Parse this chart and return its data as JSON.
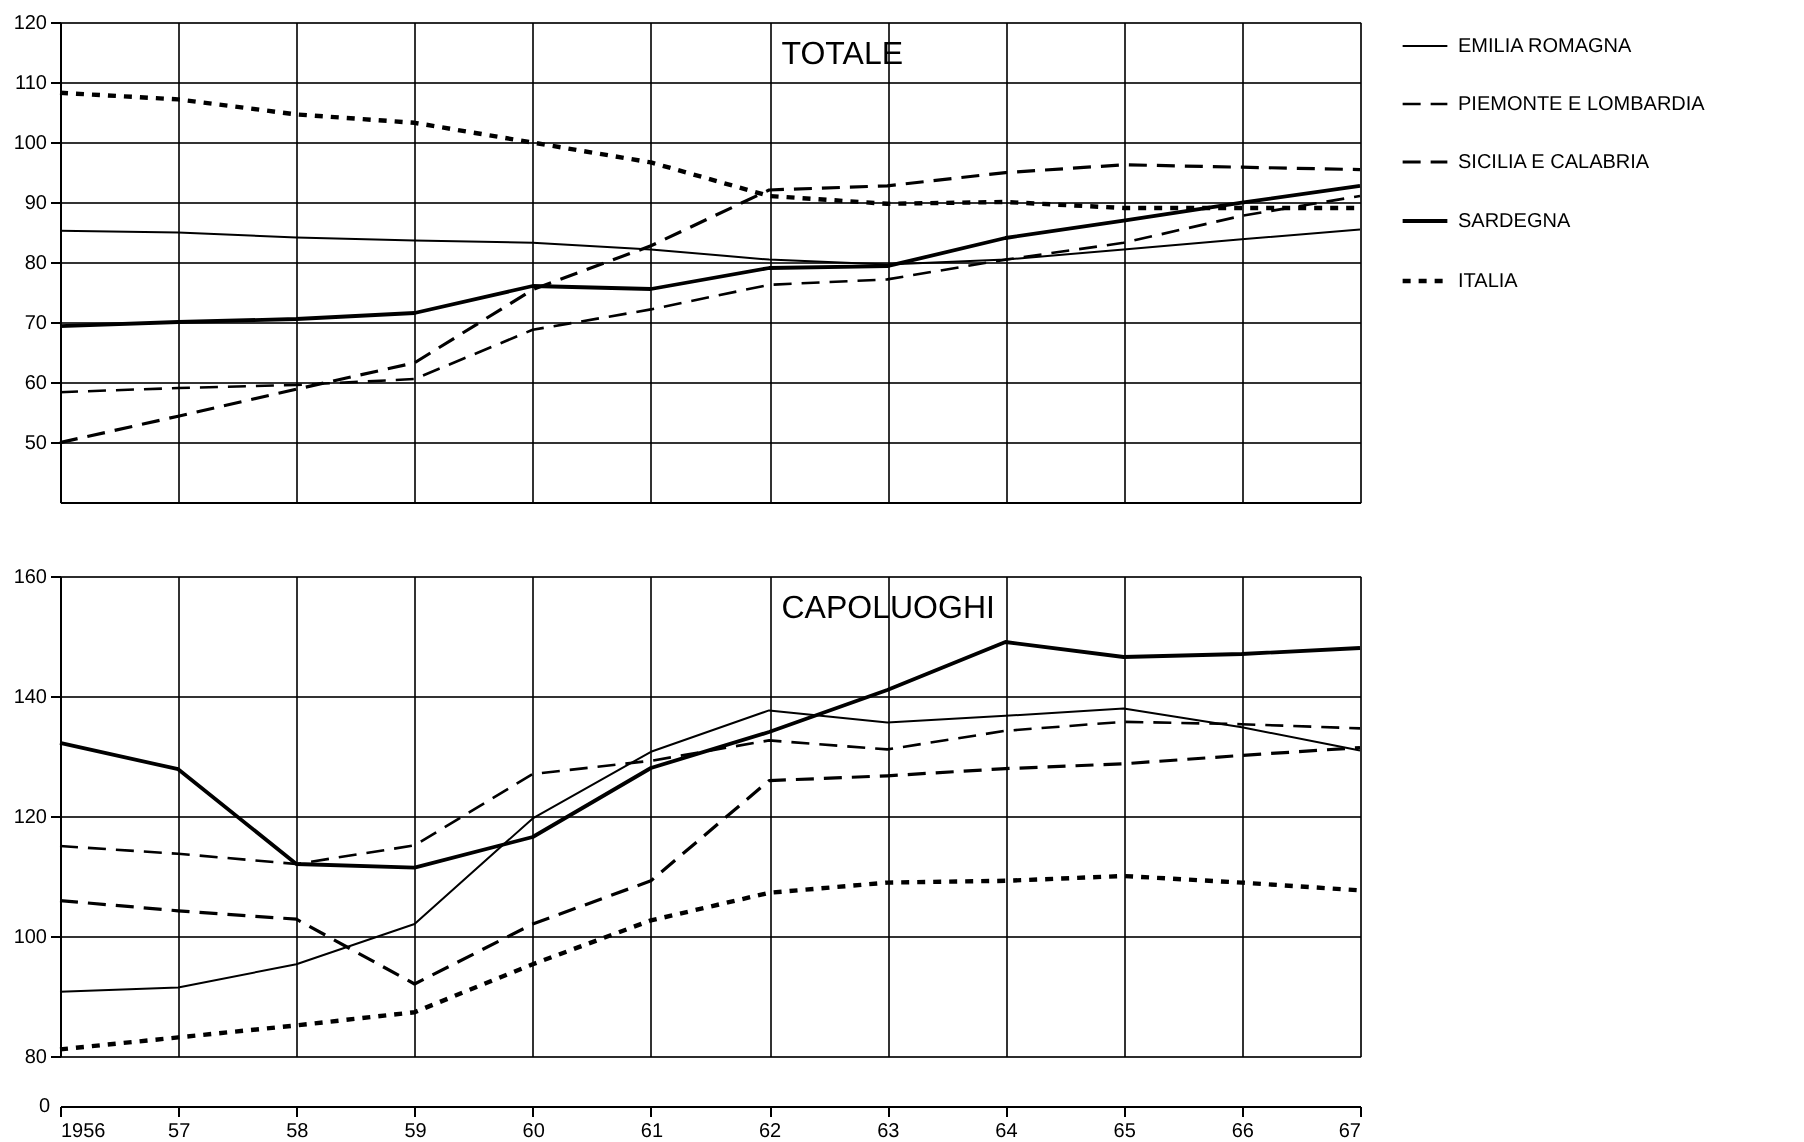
{
  "chart_data": [
    {
      "type": "line",
      "title": "TOTALE",
      "x": [
        1956,
        1957,
        1958,
        1959,
        1960,
        1961,
        1962,
        1963,
        1964,
        1965,
        1966,
        1967
      ],
      "series": [
        {
          "name": "EMILIA ROMAGNA",
          "color": "#000000",
          "line_style": "solid",
          "values": [
            85.2,
            84.9,
            84.1,
            83.6,
            83.2,
            82.1,
            80.4,
            79.6,
            80.4,
            82.1,
            83.8,
            85.4
          ]
        },
        {
          "name": "PIEMONTE E LOMBARDIA",
          "color": "#000000",
          "line_style": "dashed",
          "values": [
            58.3,
            59,
            59.5,
            60.5,
            68.7,
            72.1,
            76.2,
            77.1,
            80.4,
            83.2,
            87.7,
            91
          ]
        },
        {
          "name": "SICILIA E CALABRIA",
          "color": "#000000",
          "line_style": "dashed",
          "values": [
            49.9,
            54.3,
            58.8,
            63.2,
            75.4,
            82.7,
            92,
            92.7,
            94.9,
            96.2,
            95.8,
            95.4
          ]
        },
        {
          "name": "SARDEGNA",
          "color": "#000000",
          "line_style": "solid",
          "values": [
            69.3,
            70,
            70.5,
            71.5,
            76,
            75.5,
            79,
            79.3,
            84,
            86.9,
            89.9,
            92.7
          ]
        },
        {
          "name": "ITALIA",
          "color": "#000000",
          "line_style": "dotted",
          "values": [
            108.2,
            107.1,
            104.6,
            103.2,
            99.9,
            96.6,
            91,
            89.7,
            90,
            89,
            89,
            89
          ]
        }
      ],
      "xlim": [
        1956,
        1967
      ],
      "ylim": [
        40,
        120
      ],
      "yticks": [
        50,
        60,
        70,
        80,
        90,
        100,
        110,
        120
      ],
      "tick_labels": "y",
      "grid": true,
      "legend": "top right"
    },
    {
      "type": "line",
      "title": "CAPOLUOGHI",
      "x": [
        1956,
        1957,
        1958,
        1959,
        1960,
        1961,
        1962,
        1963,
        1964,
        1965,
        1966,
        1967
      ],
      "series": [
        {
          "color": "#000000",
          "line_style": "solid",
          "values": [
            90.7,
            91.4,
            95.3,
            102,
            119.6,
            130.7,
            137.6,
            135.6,
            136.7,
            137.9,
            134.8,
            130.9
          ]
        },
        {
          "color": "#000000",
          "line_style": "dashed",
          "values": [
            115,
            113.7,
            112,
            115.1,
            127,
            129.2,
            132.6,
            131.1,
            134.2,
            135.7,
            135.3,
            134.6
          ]
        },
        {
          "color": "#000000",
          "line_style": "dashed",
          "values": [
            105.9,
            104.2,
            102.8,
            92,
            102,
            109.2,
            125.9,
            126.7,
            127.9,
            128.7,
            130.1,
            131.4
          ]
        },
        {
          "color": "#000000",
          "line_style": "solid",
          "values": [
            132.2,
            127.8,
            112,
            111.4,
            116.5,
            128,
            134,
            141,
            149,
            146.5,
            147,
            148
          ]
        },
        {
          "color": "#000000",
          "line_style": "dotted",
          "values": [
            81.1,
            83.1,
            85.1,
            87.3,
            95.3,
            102.6,
            107.2,
            108.9,
            109.2,
            110,
            108.9,
            107.6
          ]
        }
      ],
      "xlim": [
        1956,
        1967
      ],
      "ylim": [
        80,
        160
      ],
      "yticks": [
        80,
        100,
        120,
        140,
        160
      ],
      "xticks": [
        {
          "value": 1956,
          "label": "1956"
        },
        {
          "value": 1957,
          "label": "57"
        },
        {
          "value": 1958,
          "label": "58"
        },
        {
          "value": 1959,
          "label": "59"
        },
        {
          "value": 1960,
          "label": "60"
        },
        {
          "value": 1961,
          "label": "61"
        },
        {
          "value": 1962,
          "label": "62"
        },
        {
          "value": 1963,
          "label": "63"
        },
        {
          "value": 1964,
          "label": "64"
        },
        {
          "value": 1965,
          "label": "65"
        },
        {
          "value": 1966,
          "label": "66"
        },
        {
          "value": 1967,
          "label": "67"
        }
      ],
      "annotations": [
        "0"
      ],
      "grid": true,
      "legend": false
    }
  ]
}
